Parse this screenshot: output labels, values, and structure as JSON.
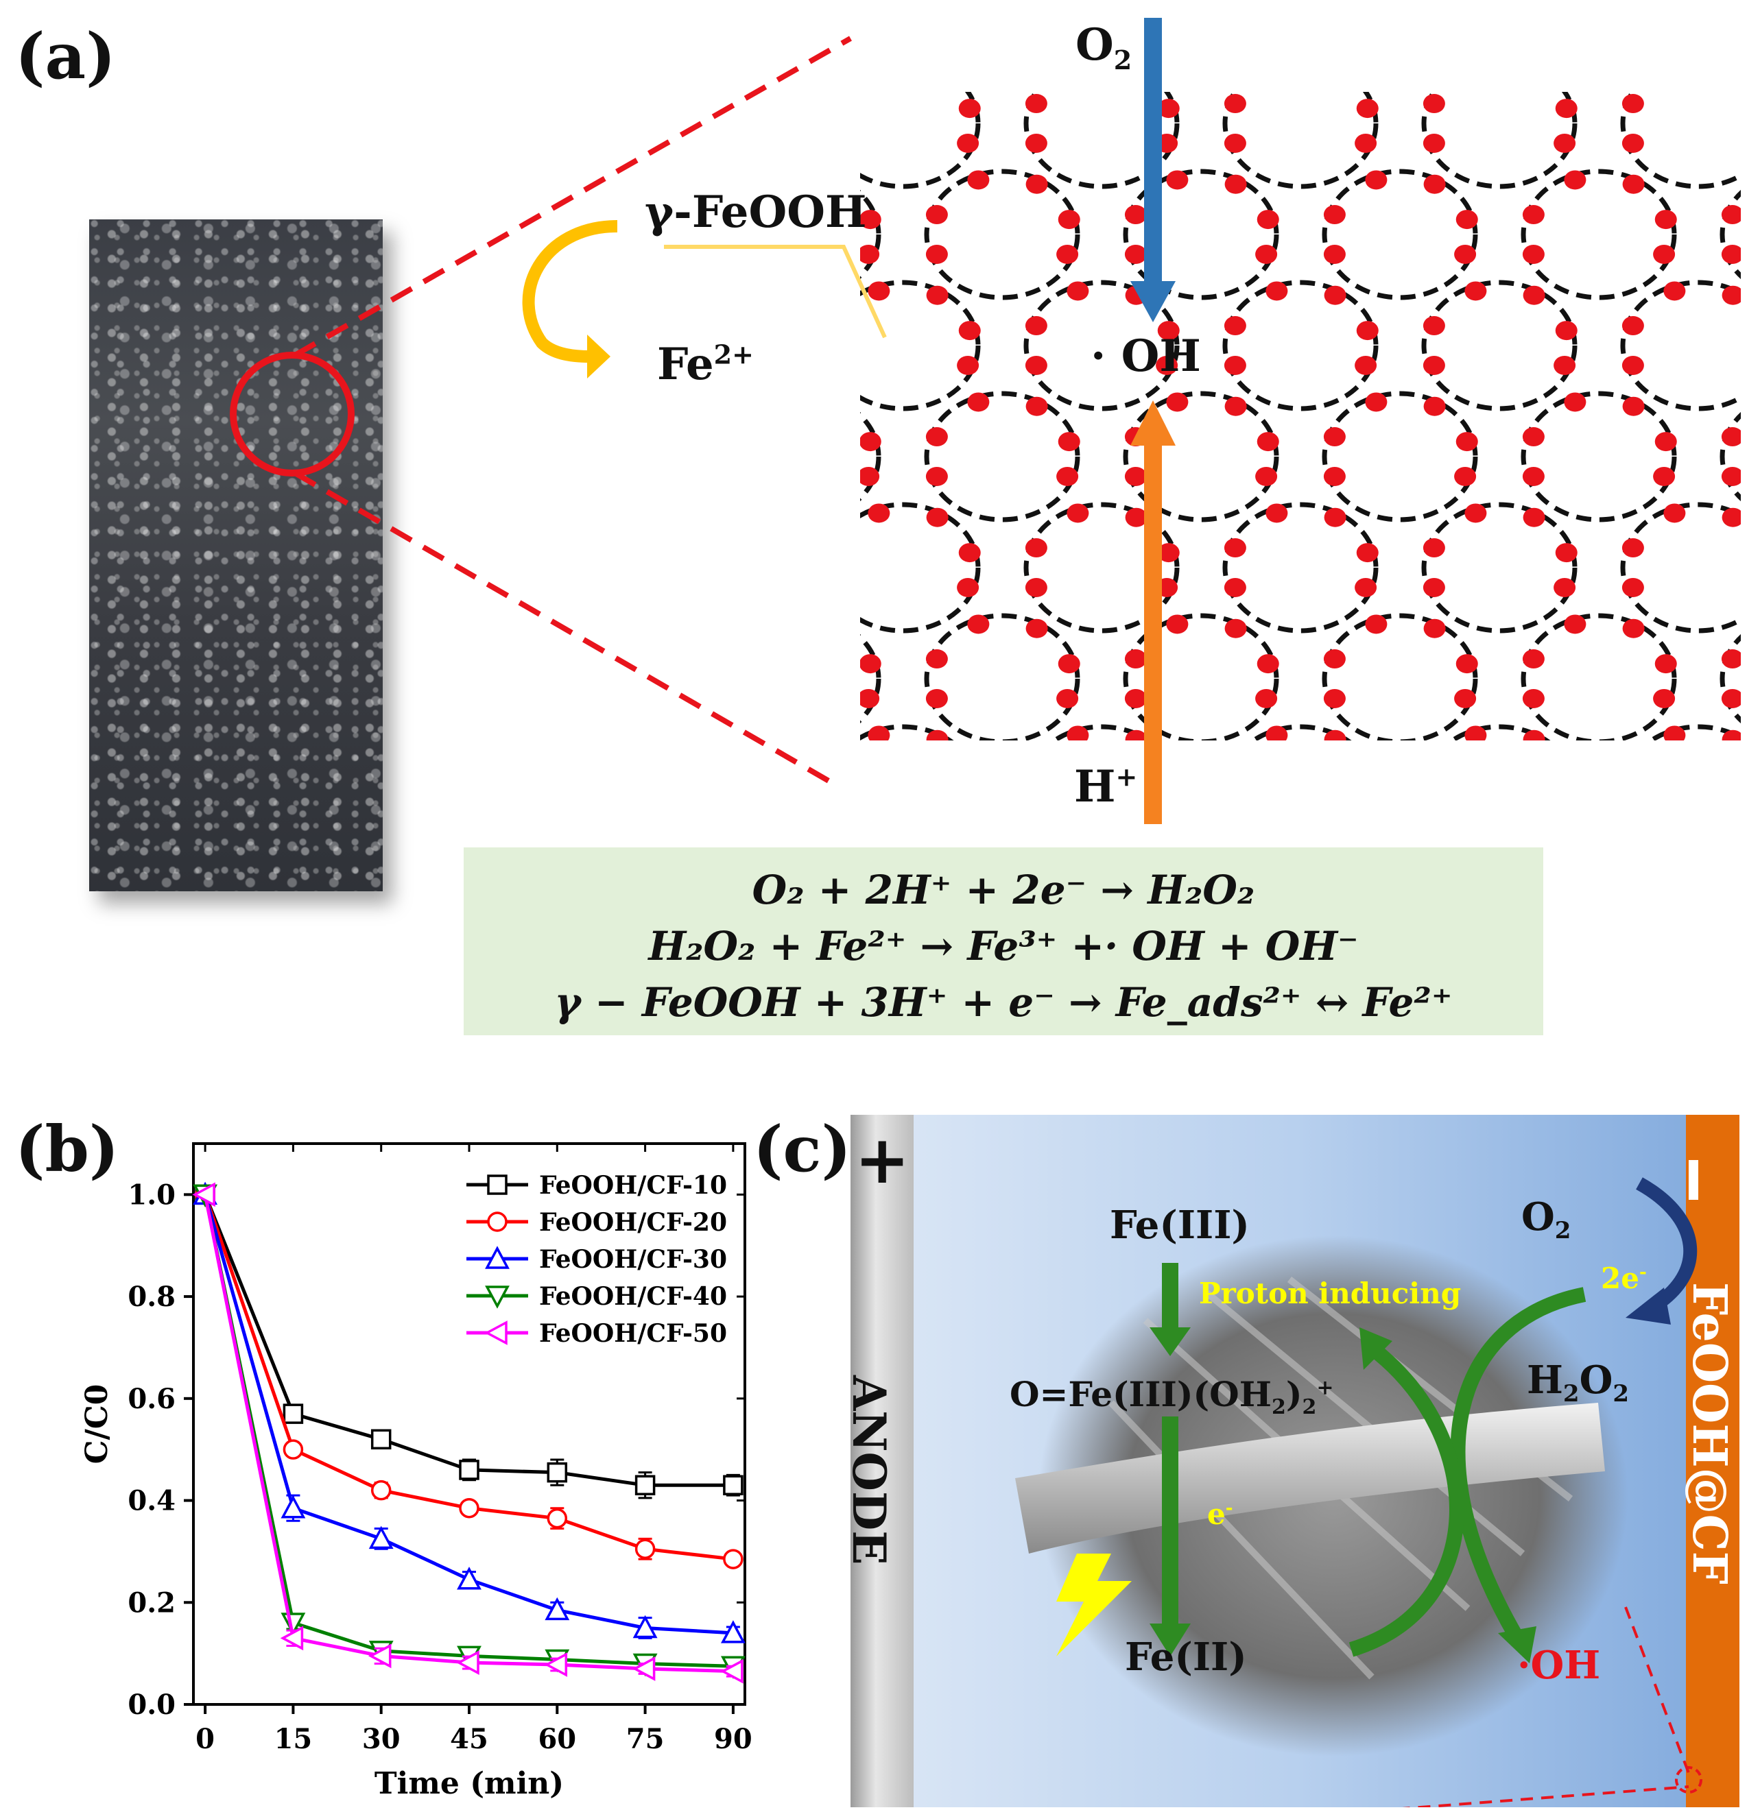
{
  "panel_a": {
    "label": "(a)",
    "o2_label": "O",
    "o2_sub": "2",
    "feooh_label": "γ-FeOOH",
    "fe2_label": "Fe",
    "fe2_sup": "2+",
    "oh_label": "· OH",
    "hplus_label": "H",
    "hplus_sup": "+",
    "equations": [
      "O₂ + 2H⁺ + 2e⁻ → H₂O₂",
      "H₂O₂ + Fe²⁺ → Fe³⁺ +· OH + OH⁻",
      "γ − FeOOH + 3H⁺ + e⁻ → Fe_ads²⁺ ↔ Fe²⁺"
    ],
    "colors": {
      "o2_arrow": "#2e75b6",
      "h_arrow": "#f58220",
      "fe_arrow": "#ffc000",
      "dots": "#e8141c",
      "zoom_lines": "#e8141c",
      "eq_box": "#e2f0d9"
    }
  },
  "panel_b": {
    "label": "(b)",
    "chart_data": {
      "type": "line",
      "xlabel": "Time (min)",
      "ylabel": "C/C0",
      "x": [
        0,
        15,
        30,
        45,
        60,
        75,
        90
      ],
      "xlim": [
        -2,
        92
      ],
      "ylim": [
        0.0,
        1.1
      ],
      "xticks": [
        0,
        15,
        30,
        45,
        60,
        75,
        90
      ],
      "yticks": [
        0.0,
        0.2,
        0.4,
        0.6,
        0.8,
        1.0
      ],
      "legend_position": "top-right",
      "series": [
        {
          "name": "FeOOH/CF-10",
          "color": "#000000",
          "marker": "square",
          "values": [
            1.0,
            0.57,
            0.52,
            0.46,
            0.455,
            0.43,
            0.43
          ],
          "errors": [
            0,
            0.015,
            0.012,
            0.02,
            0.025,
            0.025,
            0.02
          ]
        },
        {
          "name": "FeOOH/CF-20",
          "color": "#ff0000",
          "marker": "circle",
          "values": [
            1.0,
            0.5,
            0.42,
            0.385,
            0.365,
            0.305,
            0.285
          ],
          "errors": [
            0,
            0.01,
            0.015,
            0.012,
            0.02,
            0.02,
            0.012
          ]
        },
        {
          "name": "FeOOH/CF-30",
          "color": "#0000ff",
          "marker": "triangle-up",
          "values": [
            1.0,
            0.385,
            0.325,
            0.245,
            0.185,
            0.15,
            0.14
          ],
          "errors": [
            0,
            0.025,
            0.02,
            0.015,
            0.015,
            0.02,
            0.012
          ]
        },
        {
          "name": "FeOOH/CF-40",
          "color": "#008000",
          "marker": "triangle-down",
          "values": [
            1.0,
            0.16,
            0.105,
            0.095,
            0.088,
            0.08,
            0.075
          ],
          "errors": [
            0,
            0.012,
            0.012,
            0.012,
            0.012,
            0.01,
            0.01
          ]
        },
        {
          "name": "FeOOH/CF-50",
          "color": "#ff00ff",
          "marker": "triangle-left",
          "values": [
            1.0,
            0.13,
            0.095,
            0.082,
            0.078,
            0.07,
            0.065
          ],
          "errors": [
            0,
            0.015,
            0.015,
            0.012,
            0.012,
            0.01,
            0.01
          ]
        }
      ]
    }
  },
  "panel_c": {
    "label": "(c)",
    "plus": "+",
    "minus": "−",
    "anode": "ANODE",
    "cathode": "FeOOH@CF",
    "fe3": "Fe(III)",
    "proton_inducing": "Proton inducing",
    "complex": "O=Fe(III)(OH",
    "complex_sub": "2",
    "complex_end": ")",
    "complex_sub2": "2",
    "complex_sup": "+",
    "electron": "e",
    "electron_sup": "-",
    "fe2": "Fe(II)",
    "o2": "O",
    "o2_sub": "2",
    "two_e": "2e",
    "two_e_sup": "-",
    "h2o2_h": "H",
    "h2o2_sub1": "2",
    "h2o2_o": "O",
    "h2o2_sub2": "2",
    "oh_radical": "·OH",
    "colors": {
      "cathode": "#e36c09",
      "yellow": "#ffff00",
      "green_arrow": "#2e8b22",
      "navy_arrow": "#1f3a7a",
      "oh_red": "#e8141c"
    }
  }
}
